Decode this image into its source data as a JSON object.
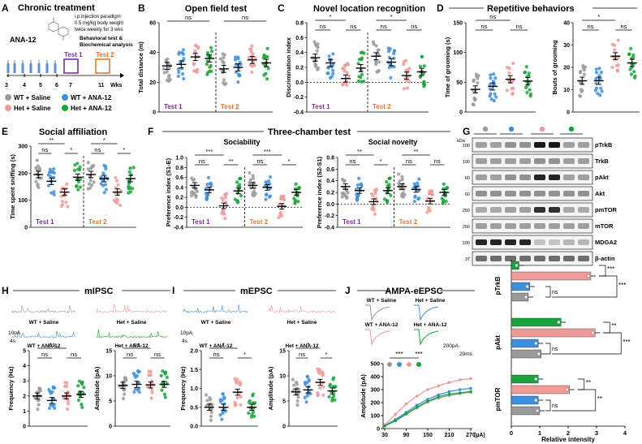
{
  "colors": {
    "wt_saline": "#9a9a9a",
    "wt_ana": "#3d8fde",
    "het_saline": "#f19a9a",
    "het_ana": "#1aa33a",
    "test1": "#7b2f99",
    "test2": "#e9772a"
  },
  "panel_a": {
    "letter": "A",
    "title": "Chronic treatment",
    "drug": "ANA-12",
    "notes": [
      "i.p.injection paradigm",
      "0.5 mg/kg body weight",
      "twice weekly for 3 wks"
    ],
    "analysis": [
      "Behavioral test &",
      "Biochemical analysis"
    ],
    "test1": "Test 1",
    "test2": "Test 2",
    "weeks": [
      "3",
      "4",
      "5",
      "6",
      "7",
      "11"
    ],
    "wks_label": "Wks",
    "legend": [
      "WT + Saline",
      "WT + ANA-12",
      "Het + Saline",
      "Het + ANA-12"
    ]
  },
  "chart_data": [
    {
      "id": "B",
      "type": "scatter",
      "title": "Open field test",
      "ylabel": "Total distance (m)",
      "ylim": [
        0,
        60
      ],
      "yticks": [
        "0",
        "20",
        "40",
        "60"
      ],
      "groups": [
        "Test 1",
        "Test 2"
      ],
      "series_means": [
        [
          31,
          32,
          37,
          36
        ],
        [
          29,
          30,
          35,
          33
        ]
      ],
      "sig": [
        "ns",
        "ns"
      ]
    },
    {
      "id": "C",
      "type": "scatter",
      "title": "Novel location recognition",
      "ylabel": "Discrimination index",
      "ylim": [
        -0.4,
        0.8
      ],
      "yticks": [
        "-0.4",
        "-0.2",
        "0.0",
        "0.2",
        "0.4",
        "0.6",
        "0.8"
      ],
      "groups": [
        "Test 1",
        "Test 2"
      ],
      "series_means": [
        [
          0.33,
          0.26,
          0.05,
          0.19
        ],
        [
          0.35,
          0.27,
          0.09,
          0.14
        ]
      ],
      "sig": [
        "*",
        "ns",
        "ns",
        "*",
        "ns",
        "ns"
      ]
    },
    {
      "id": "D1",
      "type": "scatter",
      "title": "Repetitive behaviors",
      "ylabel": "Time of grooming (s)",
      "ylim": [
        0,
        150
      ],
      "yticks": [
        "0",
        "50",
        "100",
        "150"
      ],
      "series_means": [
        38,
        43,
        55,
        52
      ],
      "sig": [
        "ns",
        "ns",
        "ns"
      ]
    },
    {
      "id": "D2",
      "type": "scatter",
      "ylabel": "Bouts of grooming",
      "ylim": [
        0,
        40
      ],
      "yticks": [
        "0",
        "10",
        "20",
        "30",
        "40"
      ],
      "series_means": [
        14,
        14,
        25,
        22
      ],
      "sig": [
        "*",
        "ns",
        "ns"
      ]
    },
    {
      "id": "E",
      "type": "scatter",
      "title": "Social affiliation",
      "ylabel": "Time spent sniffing (s)",
      "ylim": [
        0,
        300
      ],
      "yticks": [
        "0",
        "100",
        "200",
        "300"
      ],
      "groups": [
        "Test 1",
        "Test 2"
      ],
      "series_means": [
        [
          195,
          170,
          130,
          185
        ],
        [
          195,
          180,
          130,
          180
        ]
      ],
      "sig": [
        "**",
        "ns",
        "*",
        "*",
        "ns",
        "*"
      ]
    },
    {
      "id": "F1",
      "type": "scatter",
      "title": "Sociability",
      "ylabel": "Preference index (S1-E)",
      "ylim": [
        -0.4,
        1.0
      ],
      "yticks": [
        "-0.4",
        "-0.2",
        "0.0",
        "0.2",
        "0.4",
        "0.6",
        "0.8",
        "1.0"
      ],
      "groups": [
        "Test 1",
        "Test 2"
      ],
      "series_means": [
        [
          0.44,
          0.35,
          0.03,
          0.33
        ],
        [
          0.44,
          0.4,
          0.02,
          0.3
        ]
      ],
      "sig": [
        "***",
        "ns",
        "**",
        "***",
        "ns",
        "*"
      ]
    },
    {
      "id": "F2",
      "type": "scatter",
      "title": "Social novelty",
      "ylabel": "Preference index (S2-S1)",
      "ylim": [
        -0.4,
        0.8
      ],
      "yticks": [
        "-0.4",
        "-0.2",
        "0.0",
        "0.2",
        "0.4",
        "0.6",
        "0.8"
      ],
      "groups": [
        "Test 1",
        "Test 2"
      ],
      "series_means": [
        [
          0.3,
          0.23,
          0.04,
          0.23
        ],
        [
          0.3,
          0.25,
          0.05,
          0.2
        ]
      ],
      "sig": [
        "**",
        "ns",
        "*",
        "**",
        "ns",
        "ns"
      ]
    },
    {
      "id": "H1",
      "type": "scatter",
      "ylabel": "Frequency (Hz)",
      "ylim": [
        0,
        5
      ],
      "yticks": [
        "0",
        "1",
        "2",
        "3",
        "4",
        "5"
      ],
      "series_means": [
        2.0,
        1.7,
        2.0,
        2.1
      ],
      "sig": [
        "ns",
        "ns",
        "ns"
      ]
    },
    {
      "id": "H2",
      "type": "scatter",
      "ylabel": "Amplitude (pA)",
      "ylim": [
        0,
        15
      ],
      "yticks": [
        "0",
        "5",
        "10",
        "15"
      ],
      "series_means": [
        8.1,
        8.3,
        8.2,
        8.3
      ],
      "sig": [
        "ns",
        "ns",
        "ns"
      ]
    },
    {
      "id": "I1",
      "type": "scatter",
      "ylabel": "Frequency (Hz)",
      "ylim": [
        0,
        2.0
      ],
      "yticks": [
        "0.0",
        "0.5",
        "1.0",
        "1.5",
        "2.0"
      ],
      "series_means": [
        0.5,
        0.5,
        0.9,
        0.5
      ],
      "sig": [
        "*",
        "ns",
        "*"
      ]
    },
    {
      "id": "I2",
      "type": "scatter",
      "ylabel": "Amplitude (pA)",
      "ylim": [
        0,
        15
      ],
      "yticks": [
        "0",
        "5",
        "10",
        "15"
      ],
      "series_means": [
        6.8,
        7.2,
        8.7,
        7.0
      ],
      "sig": [
        "*",
        "ns",
        "*"
      ]
    },
    {
      "id": "J",
      "type": "line",
      "title": "AMPA-eEPSC",
      "ylabel": "Amplitude (pA)",
      "xlabel": "(µA)",
      "x": [
        30,
        60,
        90,
        120,
        150,
        180,
        210,
        240,
        270
      ],
      "xticks": [
        "30",
        "90",
        "150",
        "210",
        "270"
      ],
      "ylim": [
        0,
        500
      ],
      "yticks": [
        "0",
        "100",
        "200",
        "300",
        "400",
        "500"
      ],
      "series": [
        {
          "name": "WT + Saline",
          "values": [
            20,
            60,
            110,
            160,
            205,
            235,
            255,
            270,
            280
          ]
        },
        {
          "name": "WT + ANA-12",
          "values": [
            25,
            70,
            125,
            180,
            225,
            260,
            285,
            300,
            310
          ]
        },
        {
          "name": "Het + Saline",
          "values": [
            30,
            110,
            190,
            250,
            300,
            330,
            355,
            375,
            385
          ]
        },
        {
          "name": "Het + ANA-12",
          "values": [
            20,
            60,
            115,
            165,
            210,
            245,
            265,
            275,
            285
          ]
        }
      ],
      "sig": [
        "***",
        "***"
      ],
      "trace_labels": [
        "WT + Saline",
        "Het + Saline",
        "WT + ANA-12",
        "Het + ANA-12"
      ]
    },
    {
      "id": "G2",
      "type": "bar",
      "xlabel": "Relative intensity",
      "xlim": [
        0,
        4
      ],
      "xticks": [
        "0",
        "1",
        "2",
        "3",
        "4"
      ],
      "groups": [
        {
          "label": "pTrkB",
          "values": [
            0.27,
            0.65,
            2.8,
            0.6
          ],
          "sig": [
            "***",
            "ns",
            "***"
          ]
        },
        {
          "label": "pAkt",
          "values": [
            1.75,
            0.95,
            2.95,
            1.05
          ],
          "sig": [
            "**",
            "ns",
            "***"
          ]
        },
        {
          "label": "pmTOR",
          "values": [
            0.95,
            0.95,
            2.05,
            1.0
          ],
          "sig": [
            "**",
            "ns",
            "**"
          ]
        }
      ]
    }
  ],
  "panel_g": {
    "letter": "G",
    "kda": "kDa",
    "markers": [
      "100",
      "100",
      "60",
      "60",
      "250",
      "250",
      "100",
      "37"
    ],
    "proteins": [
      "pTrkB",
      "TrkB",
      "pAkt",
      "Akt",
      "pmTOR",
      "mTOR",
      "MDGA2",
      "β-actin"
    ]
  },
  "panel_h": {
    "letter": "H",
    "title": "mIPSC",
    "labels": [
      "WT + Saline",
      "Het + Saline",
      "WT + ANA-12",
      "Het + ANA-12"
    ],
    "scale": "10pA",
    "time": "4s"
  },
  "panel_i": {
    "letter": "I",
    "title": "mEPSC",
    "labels": [
      "WT + Saline",
      "Het + Saline",
      "WT + ANA-12",
      "Het + ANA-12"
    ],
    "scale": "10pA",
    "time": "4s"
  },
  "panel_j": {
    "letter": "J",
    "scale_a": "200pA",
    "scale_t": "20ms"
  },
  "panel_letters": {
    "B": "B",
    "C": "C",
    "D": "D",
    "E": "E",
    "F": "F"
  },
  "panel_titles": {
    "three_chamber": "Three-chamber test",
    "repetitive": "Repetitive behaviors"
  }
}
